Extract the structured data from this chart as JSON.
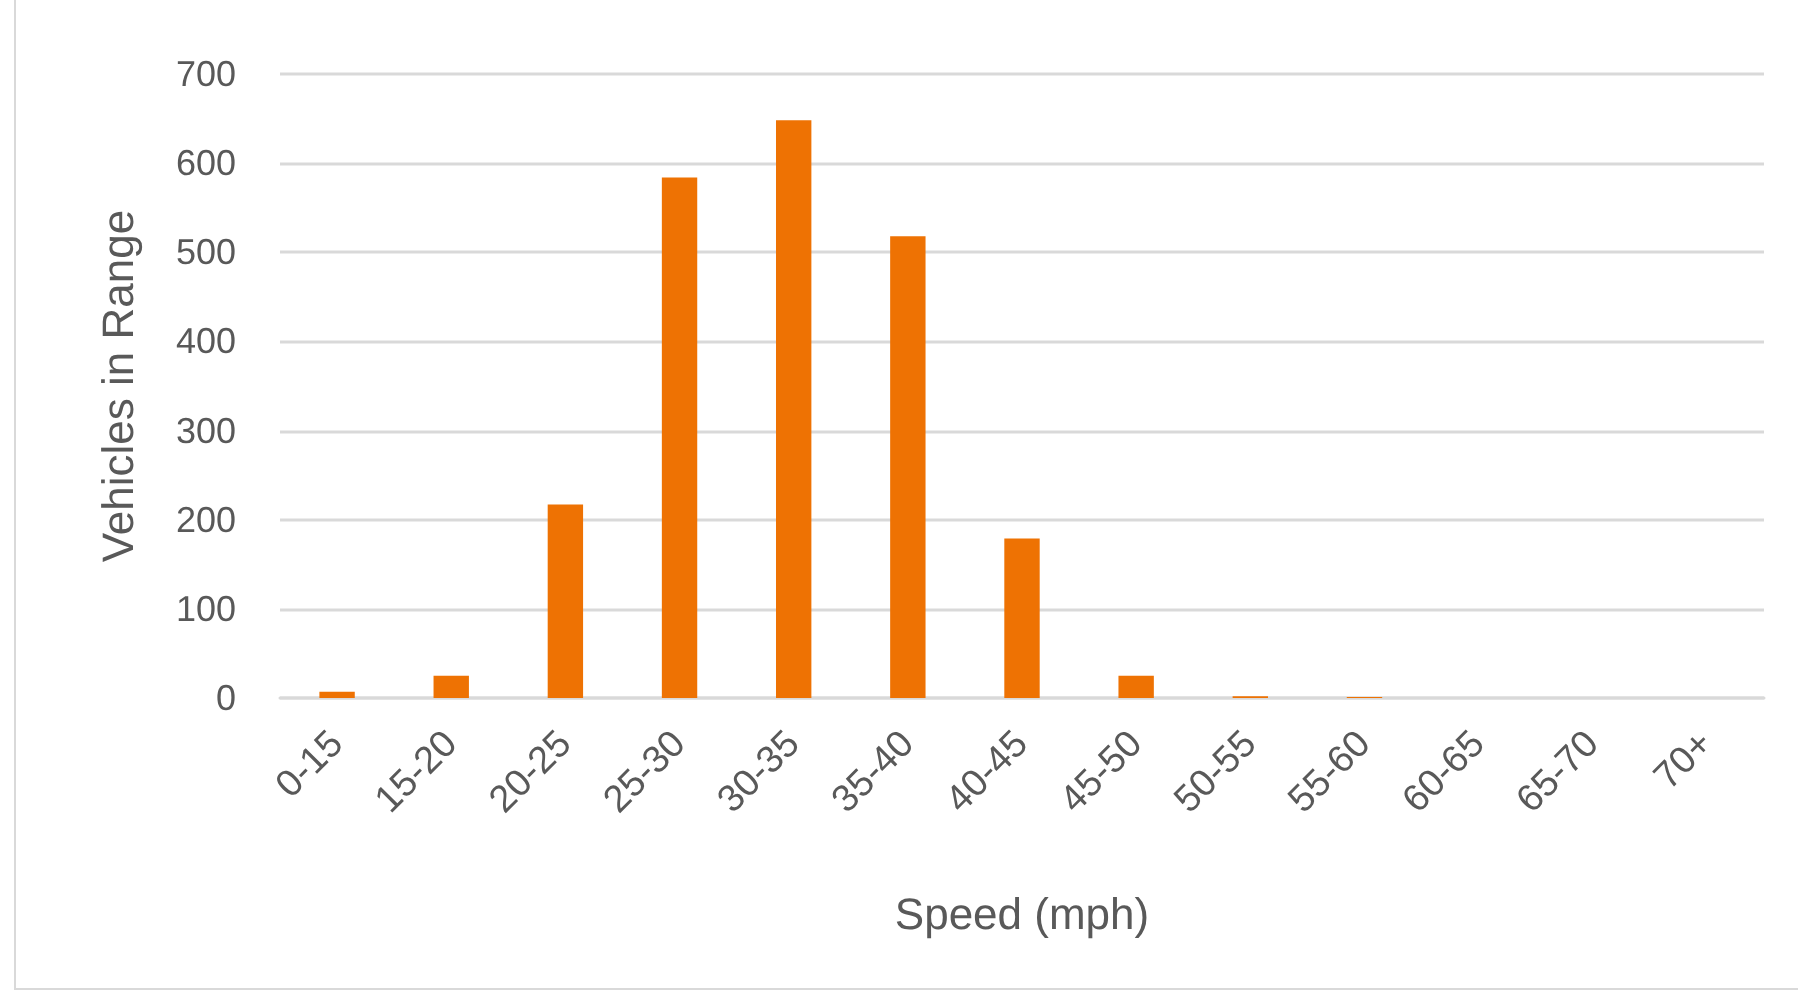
{
  "chart_data": {
    "type": "bar",
    "xlabel": "Speed (mph)",
    "ylabel": "Vehicles in Range",
    "categories": [
      "0-15",
      "15-20",
      "20-25",
      "25-30",
      "30-35",
      "35-40",
      "40-45",
      "45-50",
      "50-55",
      "55-60",
      "60-65",
      "65-70",
      "70+"
    ],
    "values": [
      7,
      25,
      217,
      584,
      648,
      518,
      179,
      25,
      2,
      1,
      0,
      0,
      0
    ],
    "color": "#ee7203",
    "ylim": [
      0,
      700
    ],
    "yticks": [
      0,
      100,
      200,
      300,
      400,
      500,
      600,
      700
    ],
    "grid": "y"
  }
}
